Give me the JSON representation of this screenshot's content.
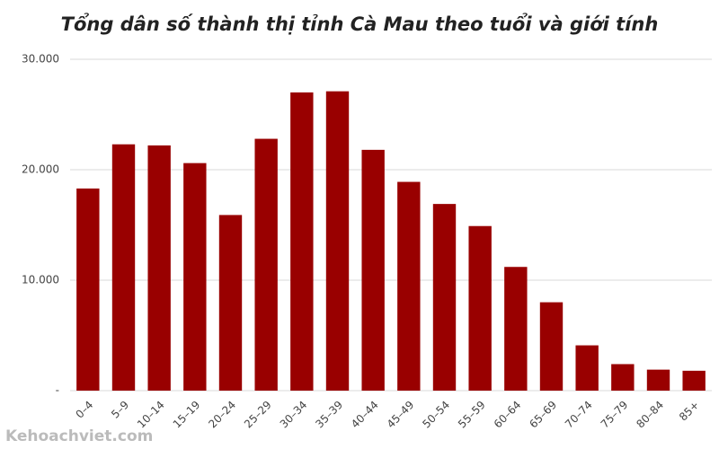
{
  "chart_data": {
    "type": "bar",
    "title": "Tổng dân số thành thị tỉnh Cà Mau theo tuổi và giới tính",
    "categories": [
      "0–4",
      "5–9",
      "10–14",
      "15–19",
      "20–24",
      "25–29",
      "30–34",
      "35–39",
      "40–44",
      "45–49",
      "50–54",
      "55–59",
      "60–64",
      "65–69",
      "70–74",
      "75–79",
      "80–84",
      "85+"
    ],
    "values": [
      18300,
      22300,
      22200,
      20600,
      15900,
      22800,
      27000,
      27100,
      21800,
      18900,
      16900,
      14900,
      11200,
      8000,
      4100,
      2400,
      1900,
      1800
    ],
    "color": "#990000",
    "ylim": [
      0,
      30000
    ],
    "yticks": [
      {
        "value": 0,
        "label": "-"
      },
      {
        "value": 10000,
        "label": "10.000"
      },
      {
        "value": 20000,
        "label": "20.000"
      },
      {
        "value": 30000,
        "label": "30.000"
      }
    ],
    "grid": true,
    "watermark": "Kehoachviet.com"
  }
}
